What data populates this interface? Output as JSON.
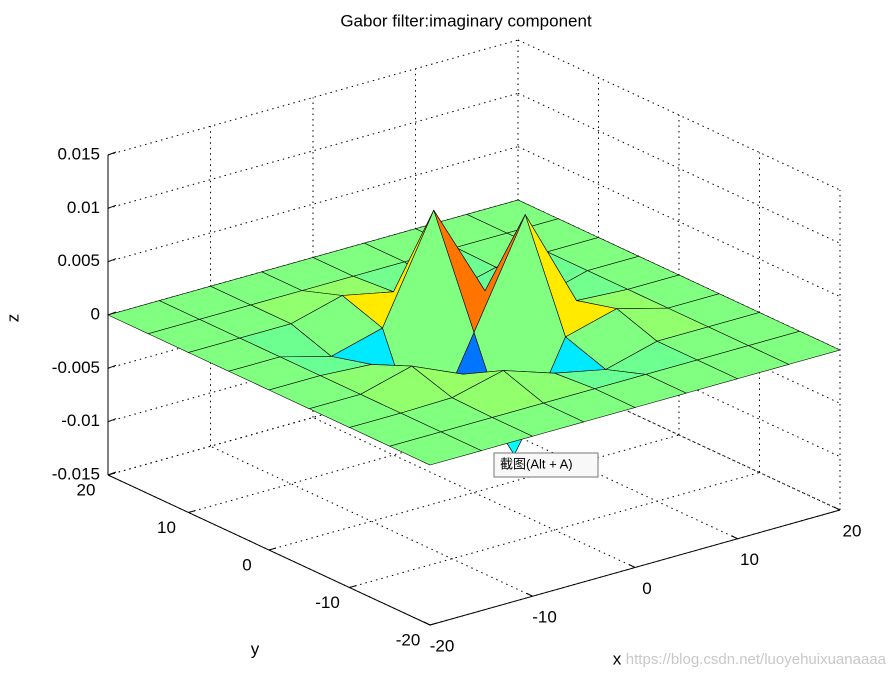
{
  "chart_data": {
    "type": "surface",
    "title": "Gabor filter:imaginary component",
    "xlabel": "x",
    "ylabel": "y",
    "zlabel": "z",
    "colormap": "jet",
    "grid": true,
    "x": [
      -20,
      -15,
      -10,
      -5,
      0,
      5,
      10,
      15,
      20
    ],
    "y": [
      -20,
      -15,
      -10,
      -5,
      0,
      5,
      10,
      15,
      20
    ],
    "z": [
      [
        0,
        0,
        0,
        0,
        0,
        0,
        0,
        0,
        0
      ],
      [
        0,
        0,
        0,
        0,
        0,
        0,
        0,
        0,
        0
      ],
      [
        0,
        0,
        0.0001,
        0.0013,
        -0.0003,
        -0.0013,
        0,
        0,
        0
      ],
      [
        0,
        0,
        0.0013,
        -0.0008,
        -0.0097,
        0,
        0.0013,
        0,
        0
      ],
      [
        0,
        0,
        -0.0003,
        -0.0097,
        0,
        0.0097,
        0.0003,
        0,
        0
      ],
      [
        0,
        0,
        -0.0013,
        0,
        0.0097,
        0.0008,
        -0.0013,
        0,
        0
      ],
      [
        0,
        0,
        0,
        0.0013,
        0.0003,
        -0.0013,
        -0.0001,
        0,
        0
      ],
      [
        0,
        0,
        0,
        0,
        0,
        0,
        0,
        0,
        0
      ],
      [
        0,
        0,
        0,
        0,
        0,
        0,
        0,
        0,
        0
      ]
    ],
    "xlim": [
      -20,
      20
    ],
    "ylim": [
      -20,
      20
    ],
    "zlim": [
      -0.015,
      0.015
    ],
    "xticks": [
      -20,
      -10,
      0,
      10,
      20
    ],
    "yticks": [
      -20,
      -10,
      0,
      10,
      20
    ],
    "zticks": [
      -0.015,
      -0.01,
      -0.005,
      0,
      0.005,
      0.01,
      0.015
    ]
  },
  "tooltip": "截图(Alt + A)",
  "watermark": "https://blog.csdn.net/luoyehuixuanaaaa"
}
